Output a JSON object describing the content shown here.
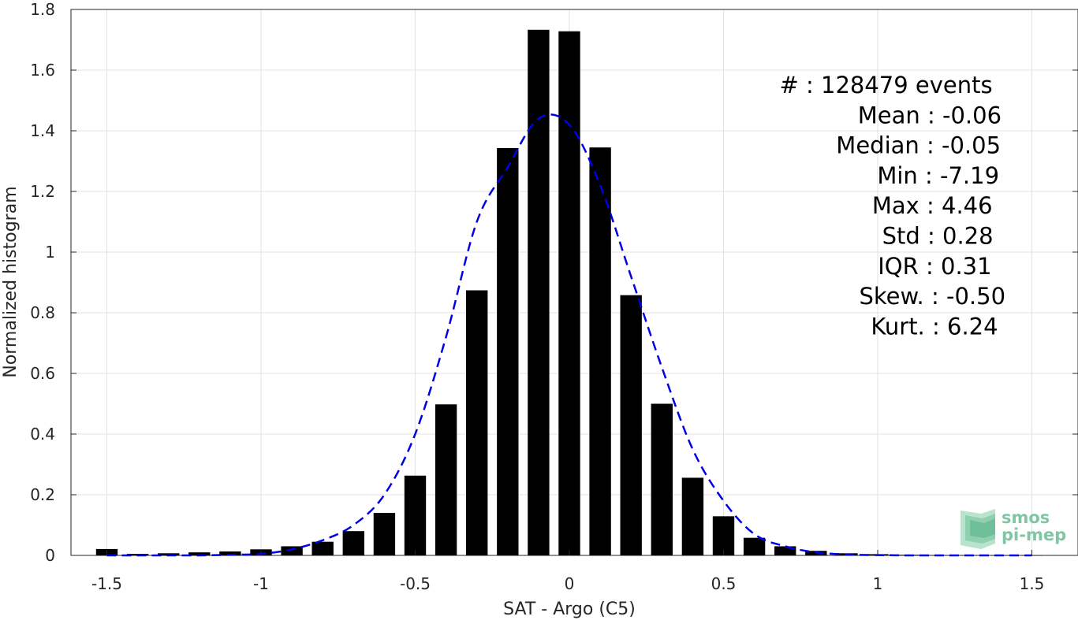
{
  "chart_data": {
    "type": "bar",
    "xlabel": "SAT - Argo (C5)",
    "ylabel": "Normalized histogram",
    "xlim": [
      -1.55,
      1.55
    ],
    "ylim": [
      0,
      1.8
    ],
    "grid": true,
    "x_ticks": [
      -1.5,
      -1,
      -0.5,
      0,
      0.5,
      1,
      1.5
    ],
    "x_tick_labels": [
      "-1.5",
      "-1",
      "-0.5",
      "0",
      "0.5",
      "1",
      "1.5"
    ],
    "y_ticks": [
      0,
      0.2,
      0.4,
      0.6,
      0.8,
      1,
      1.2,
      1.4,
      1.6,
      1.8
    ],
    "y_tick_labels": [
      "0",
      "0.2",
      "0.4",
      "0.6",
      "0.8",
      "1",
      "1.2",
      "1.4",
      "1.6",
      "1.8"
    ],
    "bar_width": 0.07,
    "bar_color": "#000000",
    "bars": {
      "x": [
        -1.5,
        -1.4,
        -1.3,
        -1.2,
        -1.1,
        -1.0,
        -0.9,
        -0.8,
        -0.7,
        -0.6,
        -0.5,
        -0.4,
        -0.3,
        -0.2,
        -0.1,
        0.0,
        0.1,
        0.2,
        0.3,
        0.4,
        0.5,
        0.6,
        0.7,
        0.8,
        0.9,
        1.0,
        1.1,
        1.2,
        1.3,
        1.4,
        1.5
      ],
      "values": [
        0.021,
        0.005,
        0.007,
        0.01,
        0.013,
        0.02,
        0.03,
        0.045,
        0.08,
        0.14,
        0.263,
        0.498,
        0.874,
        1.343,
        1.733,
        1.728,
        1.345,
        0.858,
        0.5,
        0.256,
        0.129,
        0.058,
        0.03,
        0.015,
        0.007,
        0.004,
        0.002,
        0.001,
        0.001,
        0.0005,
        0.0003
      ]
    },
    "fit_curve": {
      "style": "dashed",
      "color": "#0000e6",
      "x": [
        -1.5,
        -1.4,
        -1.3,
        -1.2,
        -1.1,
        -1.0,
        -0.9,
        -0.8,
        -0.7,
        -0.6,
        -0.5,
        -0.4,
        -0.3,
        -0.2,
        -0.1,
        0.0,
        0.1,
        0.2,
        0.3,
        0.4,
        0.5,
        0.6,
        0.7,
        0.8,
        0.9,
        1.0,
        1.1,
        1.2,
        1.3,
        1.4,
        1.5
      ],
      "y": [
        0.0,
        0.0,
        0.0,
        0.0,
        0.002,
        0.005,
        0.02,
        0.05,
        0.1,
        0.2,
        0.4,
        0.72,
        1.1,
        1.28,
        1.44,
        1.42,
        1.22,
        0.92,
        0.62,
        0.35,
        0.18,
        0.07,
        0.03,
        0.01,
        0.003,
        0.001,
        0.0,
        0.0,
        0.0,
        0.0,
        0.0
      ]
    },
    "annotations": [
      {
        "key": "#  ",
        "value": "128479 events"
      },
      {
        "key": "Mean",
        "value": "-0.06"
      },
      {
        "key": "Median",
        "value": "-0.05"
      },
      {
        "key": "Min",
        "value": "-7.19"
      },
      {
        "key": "Max",
        "value": "4.46"
      },
      {
        "key": "Std",
        "value": "0.28"
      },
      {
        "key": "IQR",
        "value": "0.31"
      },
      {
        "key": "Skew.",
        "value": "-0.50"
      },
      {
        "key": "Kurt.",
        "value": "6.24"
      }
    ],
    "logo": {
      "line1": "smos",
      "line2": "pi-mep",
      "color": "#7fc6a4"
    }
  }
}
